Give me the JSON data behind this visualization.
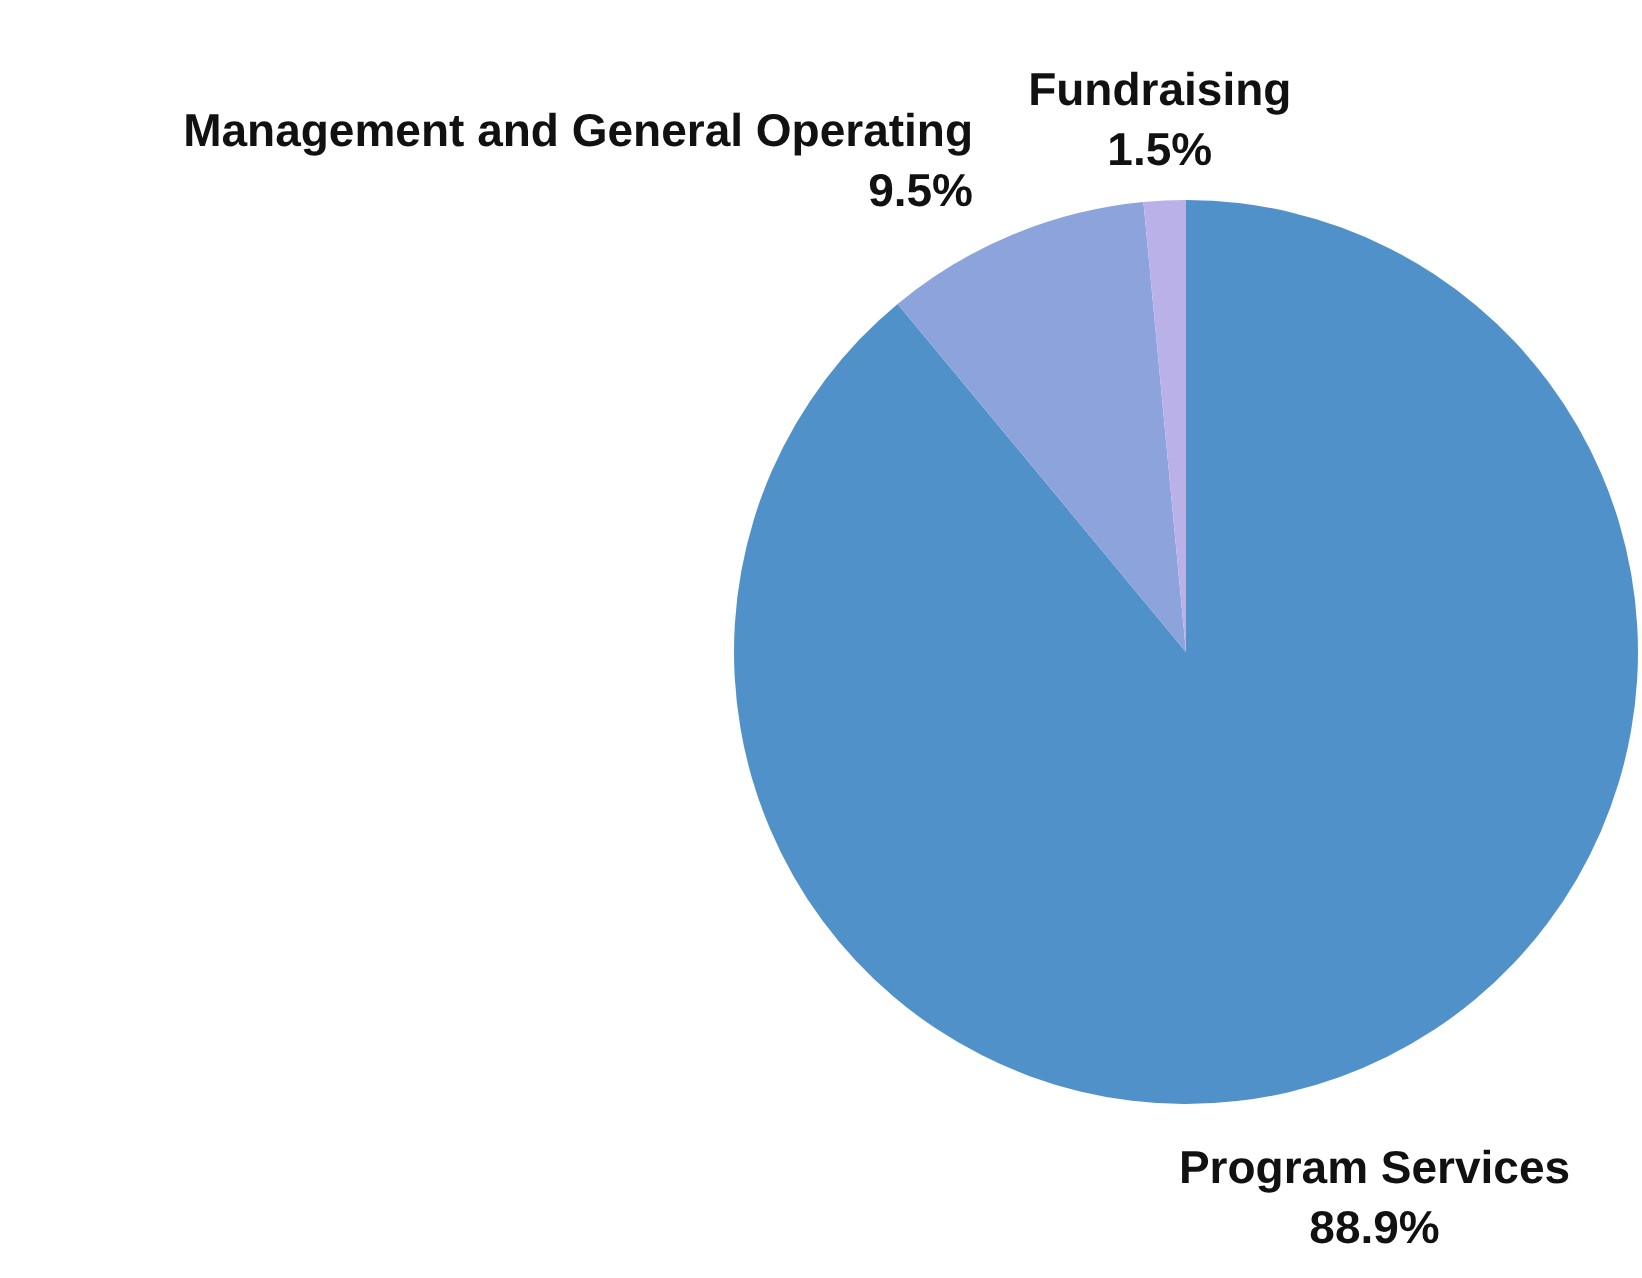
{
  "chart_data": {
    "type": "pie",
    "categories": [
      "Program Services",
      "Management and General Operating",
      "Fundraising"
    ],
    "values": [
      88.9,
      9.5,
      1.5
    ],
    "value_labels": [
      "88.9%",
      "9.5%",
      "1.5%"
    ],
    "colors": [
      "#5191c9",
      "#8ca3db",
      "#b9b1e8"
    ]
  }
}
